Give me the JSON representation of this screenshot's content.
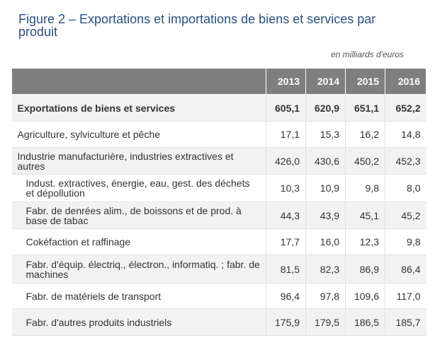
{
  "title": "Figure 2 – Exportations et importations de biens et services par produit",
  "unit": "en milliards d'euros",
  "years": [
    "2013",
    "2014",
    "2015",
    "2016"
  ],
  "rows": [
    {
      "label": "Exportations de biens et services",
      "values": [
        "605,1",
        "620,9",
        "651,1",
        "652,2"
      ]
    },
    {
      "label": "Agriculture, sylviculture et pêche",
      "values": [
        "17,1",
        "15,3",
        "16,2",
        "14,8"
      ]
    },
    {
      "label": "Industrie manufacturière, industries extractives et autres",
      "values": [
        "426,0",
        "430,6",
        "450,2",
        "452,3"
      ]
    },
    {
      "label": "Indust. extractives, énergie, eau, gest. des déchets et dépollution",
      "values": [
        "10,3",
        "10,9",
        "9,8",
        "8,0"
      ]
    },
    {
      "label": "Fabr. de denrées alim., de boissons et de prod. à base de tabac",
      "values": [
        "44,3",
        "43,9",
        "45,1",
        "45,2"
      ]
    },
    {
      "label": "Cokéfaction et raffinage",
      "values": [
        "17,7",
        "16,0",
        "12,3",
        "9,8"
      ]
    },
    {
      "label": "Fabr. d'équip. électriq., électron., informatiq. ; fabr. de machines",
      "values": [
        "81,5",
        "82,3",
        "86,9",
        "86,4"
      ]
    },
    {
      "label": "Fabr. de matériels de transport",
      "values": [
        "96,4",
        "97,8",
        "109,6",
        "117,0"
      ]
    },
    {
      "label": "Fabr. d'autres produits industriels",
      "values": [
        "175,9",
        "179,5",
        "186,5",
        "185,7"
      ]
    }
  ]
}
